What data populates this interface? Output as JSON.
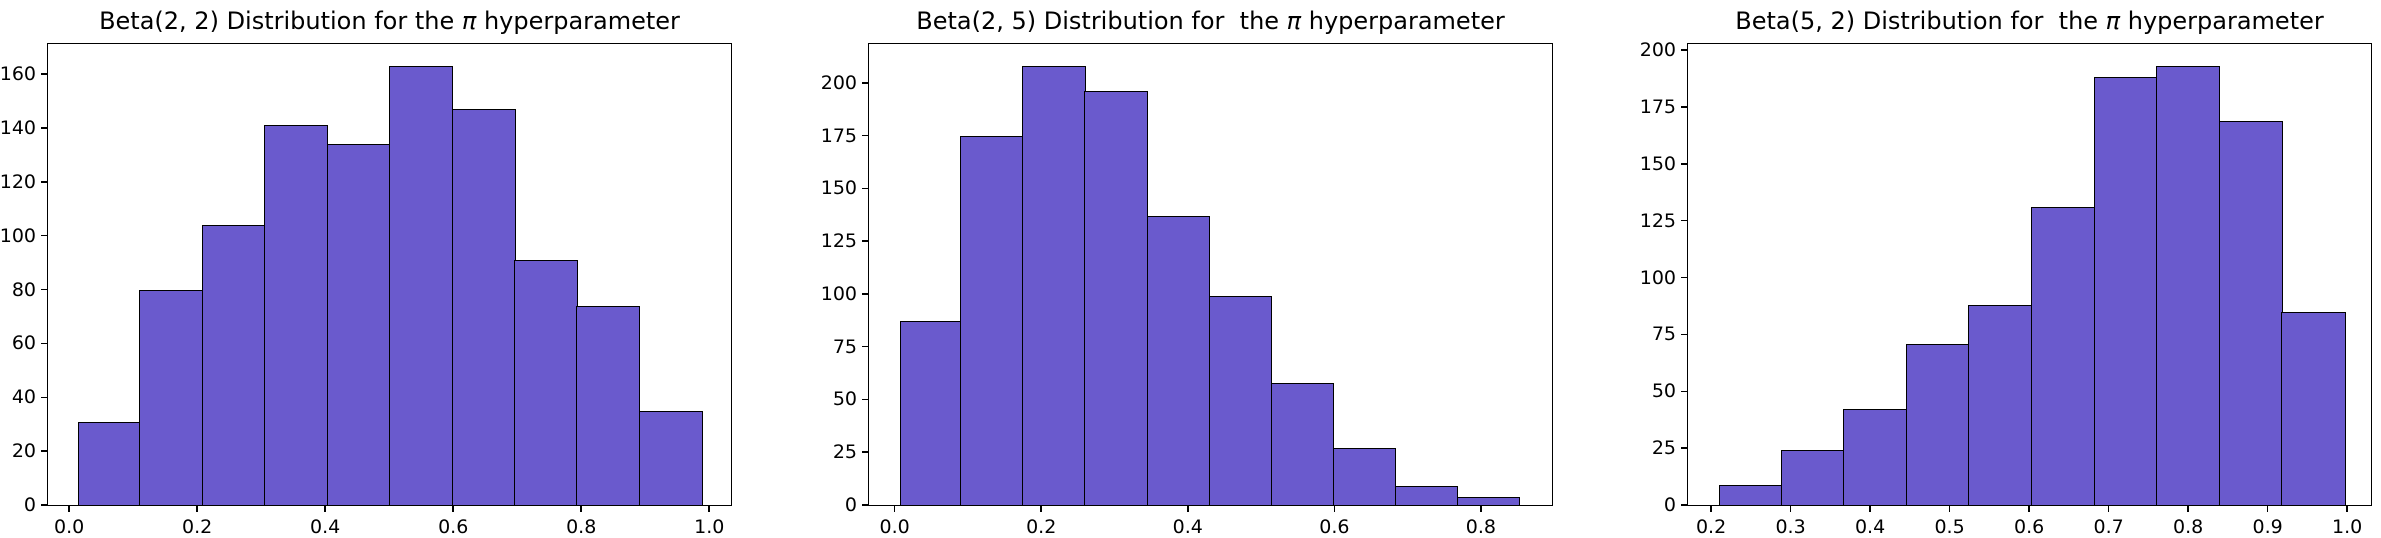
{
  "figure": {
    "background": "#ffffff",
    "bar_color": "#6A5ACD",
    "edge_color": "#000000"
  },
  "chart_data": [
    {
      "type": "bar",
      "title": "Beta(2, 2) Distribution for the π hyperparameter",
      "title_prefix": "Beta(2, 2) Distribution for the ",
      "title_pi": "π",
      "title_suffix": " hyperparameter",
      "xlabel": "",
      "ylabel": "",
      "grid": false,
      "legend": false,
      "bar_color": "#6A5ACD",
      "edge_color": "#000000",
      "bin_start": 0.0146,
      "bin_width": 0.09754,
      "values": [
        31,
        80,
        104,
        141,
        134,
        163,
        147,
        91,
        74,
        35
      ],
      "total_samples": 1000,
      "xlim": [
        -0.033,
        1.034
      ],
      "ylim": [
        0,
        171.2
      ],
      "xticks": [
        {
          "v": 0.0,
          "label": "0.0"
        },
        {
          "v": 0.2,
          "label": "0.2"
        },
        {
          "v": 0.4,
          "label": "0.4"
        },
        {
          "v": 0.6,
          "label": "0.6"
        },
        {
          "v": 0.8,
          "label": "0.8"
        },
        {
          "v": 1.0,
          "label": "1.0"
        }
      ],
      "yticks": [
        {
          "v": 0,
          "label": "0"
        },
        {
          "v": 20,
          "label": "20"
        },
        {
          "v": 40,
          "label": "40"
        },
        {
          "v": 60,
          "label": "60"
        },
        {
          "v": 80,
          "label": "80"
        },
        {
          "v": 100,
          "label": "100"
        },
        {
          "v": 120,
          "label": "120"
        },
        {
          "v": 140,
          "label": "140"
        },
        {
          "v": 160,
          "label": "160"
        }
      ]
    },
    {
      "type": "bar",
      "title": "Beta(2, 5) Distribution for  the π hyperparameter",
      "title_prefix": "Beta(2, 5) Distribution for  the ",
      "title_pi": "π",
      "title_suffix": " hyperparameter",
      "xlabel": "",
      "ylabel": "",
      "grid": false,
      "legend": false,
      "bar_color": "#6A5ACD",
      "edge_color": "#000000",
      "bin_start": 0.007,
      "bin_width": 0.0847,
      "values": [
        87,
        175,
        208,
        196,
        137,
        99,
        58,
        27,
        9,
        4
      ],
      "total_samples": 1000,
      "xlim": [
        -0.035,
        0.897
      ],
      "ylim": [
        0,
        218.4
      ],
      "xticks": [
        {
          "v": 0.0,
          "label": "0.0"
        },
        {
          "v": 0.2,
          "label": "0.2"
        },
        {
          "v": 0.4,
          "label": "0.4"
        },
        {
          "v": 0.6,
          "label": "0.6"
        },
        {
          "v": 0.8,
          "label": "0.8"
        }
      ],
      "yticks": [
        {
          "v": 0,
          "label": "0"
        },
        {
          "v": 25,
          "label": "25"
        },
        {
          "v": 50,
          "label": "50"
        },
        {
          "v": 75,
          "label": "75"
        },
        {
          "v": 100,
          "label": "100"
        },
        {
          "v": 125,
          "label": "125"
        },
        {
          "v": 150,
          "label": "150"
        },
        {
          "v": 175,
          "label": "175"
        },
        {
          "v": 200,
          "label": "200"
        }
      ]
    },
    {
      "type": "bar",
      "title": "Beta(5, 2) Distribution for  the π hyperparameter",
      "title_prefix": "Beta(5, 2) Distribution for  the ",
      "title_pi": "π",
      "title_suffix": " hyperparameter",
      "xlabel": "",
      "ylabel": "",
      "grid": false,
      "legend": false,
      "bar_color": "#6A5ACD",
      "edge_color": "#000000",
      "bin_start": 0.2105,
      "bin_width": 0.07875,
      "values": [
        9,
        24,
        42,
        71,
        88,
        131,
        188,
        193,
        169,
        85
      ],
      "total_samples": 1000,
      "xlim": [
        0.171,
        1.03
      ],
      "ylim": [
        0,
        202.7
      ],
      "xticks": [
        {
          "v": 0.2,
          "label": "0.2"
        },
        {
          "v": 0.3,
          "label": "0.3"
        },
        {
          "v": 0.4,
          "label": "0.4"
        },
        {
          "v": 0.5,
          "label": "0.5"
        },
        {
          "v": 0.6,
          "label": "0.6"
        },
        {
          "v": 0.7,
          "label": "0.7"
        },
        {
          "v": 0.8,
          "label": "0.8"
        },
        {
          "v": 0.9,
          "label": "0.9"
        },
        {
          "v": 1.0,
          "label": "1.0"
        }
      ],
      "yticks": [
        {
          "v": 0,
          "label": "0"
        },
        {
          "v": 25,
          "label": "25"
        },
        {
          "v": 50,
          "label": "50"
        },
        {
          "v": 75,
          "label": "75"
        },
        {
          "v": 100,
          "label": "100"
        },
        {
          "v": 125,
          "label": "125"
        },
        {
          "v": 150,
          "label": "150"
        },
        {
          "v": 175,
          "label": "175"
        },
        {
          "v": 200,
          "label": "200"
        }
      ]
    }
  ]
}
